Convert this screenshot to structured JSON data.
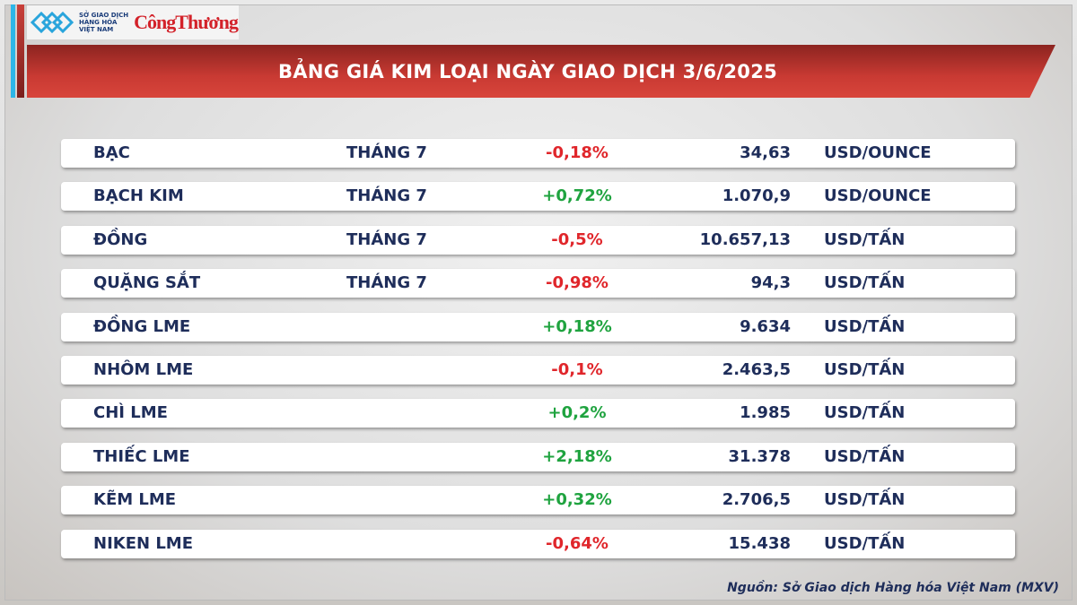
{
  "logo": {
    "mxv_lines": [
      "SỞ GIAO DỊCH",
      "HÀNG HÓA",
      "VIỆT NAM"
    ],
    "cong_thuong": "CôngThương"
  },
  "title": "BẢNG GIÁ KIM LOẠI NGÀY GIAO DỊCH 3/6/2025",
  "colors": {
    "negative": "#e0262b",
    "positive": "#1fa33f",
    "text": "#1e2d5a",
    "banner": "#c93a33"
  },
  "rows": [
    {
      "name": "BẠC",
      "month": "THÁNG 7",
      "change": "-0,18%",
      "value": "34,63",
      "unit": "USD/OUNCE",
      "dir": "neg"
    },
    {
      "name": "BẠCH KIM",
      "month": "THÁNG 7",
      "change": "+0,72%",
      "value": "1.070,9",
      "unit": "USD/OUNCE",
      "dir": "pos"
    },
    {
      "name": "ĐỒNG",
      "month": "THÁNG 7",
      "change": "-0,5%",
      "value": "10.657,13",
      "unit": "USD/TẤN",
      "dir": "neg"
    },
    {
      "name": "QUẶNG SẮT",
      "month": "THÁNG 7",
      "change": "-0,98%",
      "value": "94,3",
      "unit": "USD/TẤN",
      "dir": "neg"
    },
    {
      "name": "ĐỒNG LME",
      "month": "",
      "change": "+0,18%",
      "value": "9.634",
      "unit": "USD/TẤN",
      "dir": "pos"
    },
    {
      "name": "NHÔM LME",
      "month": "",
      "change": "-0,1%",
      "value": "2.463,5",
      "unit": "USD/TẤN",
      "dir": "neg"
    },
    {
      "name": "CHÌ LME",
      "month": "",
      "change": "+0,2%",
      "value": "1.985",
      "unit": "USD/TẤN",
      "dir": "pos"
    },
    {
      "name": "THIẾC LME",
      "month": "",
      "change": "+2,18%",
      "value": "31.378",
      "unit": "USD/TẤN",
      "dir": "pos"
    },
    {
      "name": "KẼM LME",
      "month": "",
      "change": "+0,32%",
      "value": "2.706,5",
      "unit": "USD/TẤN",
      "dir": "pos"
    },
    {
      "name": "NIKEN LME",
      "month": "",
      "change": "-0,64%",
      "value": "15.438",
      "unit": "USD/TẤN",
      "dir": "neg"
    }
  ],
  "source": "Nguồn: Sở Giao dịch Hàng hóa Việt Nam (MXV)"
}
